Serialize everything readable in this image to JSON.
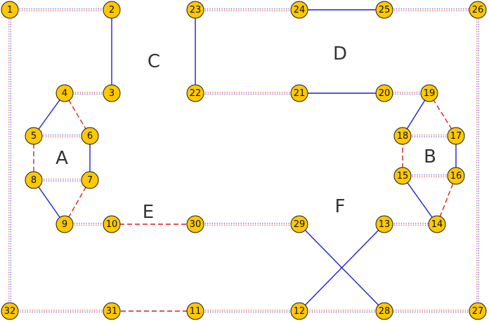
{
  "styles": {
    "solid": {
      "color": "#1f1fd6",
      "dash": ""
    },
    "dashed": {
      "color": "#e0191b",
      "dash": "7,4"
    },
    "dotted_red": {
      "color": "#e0191b",
      "dash": "1.2,2.2",
      "paired_with": "#1f1fd6"
    }
  },
  "regions": [
    {
      "id": "A",
      "label": "A"
    },
    {
      "id": "B",
      "label": "B"
    },
    {
      "id": "C",
      "label": "C"
    },
    {
      "id": "D",
      "label": "D"
    },
    {
      "id": "E",
      "label": "E"
    },
    {
      "id": "F",
      "label": "F"
    }
  ],
  "nodes": [
    {
      "id": 1,
      "label": "1"
    },
    {
      "id": 2,
      "label": "2"
    },
    {
      "id": 3,
      "label": "3"
    },
    {
      "id": 4,
      "label": "4"
    },
    {
      "id": 5,
      "label": "5"
    },
    {
      "id": 6,
      "label": "6"
    },
    {
      "id": 7,
      "label": "7"
    },
    {
      "id": 8,
      "label": "8"
    },
    {
      "id": 9,
      "label": "9"
    },
    {
      "id": 10,
      "label": "10"
    },
    {
      "id": 11,
      "label": "11"
    },
    {
      "id": 12,
      "label": "12"
    },
    {
      "id": 13,
      "label": "13"
    },
    {
      "id": 14,
      "label": "14"
    },
    {
      "id": 15,
      "label": "15"
    },
    {
      "id": 16,
      "label": "16"
    },
    {
      "id": 17,
      "label": "17"
    },
    {
      "id": 18,
      "label": "18"
    },
    {
      "id": 19,
      "label": "19"
    },
    {
      "id": 20,
      "label": "20"
    },
    {
      "id": 21,
      "label": "21"
    },
    {
      "id": 22,
      "label": "22"
    },
    {
      "id": 23,
      "label": "23"
    },
    {
      "id": 24,
      "label": "24"
    },
    {
      "id": 25,
      "label": "25"
    },
    {
      "id": 26,
      "label": "26"
    },
    {
      "id": 27,
      "label": "27"
    },
    {
      "id": 28,
      "label": "28"
    },
    {
      "id": 29,
      "label": "29"
    },
    {
      "id": 30,
      "label": "30"
    },
    {
      "id": 31,
      "label": "31"
    },
    {
      "id": 32,
      "label": "32"
    }
  ],
  "edges": [
    {
      "from": 1,
      "to": 2,
      "style": "dotted"
    },
    {
      "from": 1,
      "to": 32,
      "style": "dotted"
    },
    {
      "from": 2,
      "to": 3,
      "style": "solid"
    },
    {
      "from": 3,
      "to": 4,
      "style": "dotted"
    },
    {
      "from": 4,
      "to": 5,
      "style": "solid"
    },
    {
      "from": 4,
      "to": 6,
      "style": "dashed"
    },
    {
      "from": 5,
      "to": 6,
      "style": "dotted"
    },
    {
      "from": 5,
      "to": 8,
      "style": "dashed"
    },
    {
      "from": 6,
      "to": 7,
      "style": "solid"
    },
    {
      "from": 7,
      "to": 8,
      "style": "dotted"
    },
    {
      "from": 7,
      "to": 9,
      "style": "dashed"
    },
    {
      "from": 8,
      "to": 9,
      "style": "solid"
    },
    {
      "from": 9,
      "to": 10,
      "style": "dotted"
    },
    {
      "from": 10,
      "to": 30,
      "style": "dashed"
    },
    {
      "from": 30,
      "to": 29,
      "style": "dotted"
    },
    {
      "from": 29,
      "to": 28,
      "style": "solid"
    },
    {
      "from": 13,
      "to": 12,
      "style": "solid"
    },
    {
      "from": 13,
      "to": 14,
      "style": "dotted"
    },
    {
      "from": 14,
      "to": 15,
      "style": "solid"
    },
    {
      "from": 14,
      "to": 16,
      "style": "dashed"
    },
    {
      "from": 15,
      "to": 16,
      "style": "dotted"
    },
    {
      "from": 15,
      "to": 18,
      "style": "dashed"
    },
    {
      "from": 16,
      "to": 17,
      "style": "solid"
    },
    {
      "from": 17,
      "to": 18,
      "style": "dotted"
    },
    {
      "from": 17,
      "to": 19,
      "style": "dashed"
    },
    {
      "from": 18,
      "to": 19,
      "style": "solid"
    },
    {
      "from": 19,
      "to": 20,
      "style": "dotted"
    },
    {
      "from": 20,
      "to": 21,
      "style": "solid"
    },
    {
      "from": 21,
      "to": 22,
      "style": "dotted"
    },
    {
      "from": 22,
      "to": 23,
      "style": "solid"
    },
    {
      "from": 23,
      "to": 24,
      "style": "dotted"
    },
    {
      "from": 24,
      "to": 25,
      "style": "solid"
    },
    {
      "from": 25,
      "to": 26,
      "style": "dotted"
    },
    {
      "from": 26,
      "to": 27,
      "style": "dotted"
    },
    {
      "from": 27,
      "to": 28,
      "style": "dotted"
    },
    {
      "from": 28,
      "to": 12,
      "style": "dotted"
    },
    {
      "from": 12,
      "to": 11,
      "style": "dotted"
    },
    {
      "from": 11,
      "to": 31,
      "style": "dashed"
    },
    {
      "from": 31,
      "to": 32,
      "style": "dotted"
    }
  ]
}
